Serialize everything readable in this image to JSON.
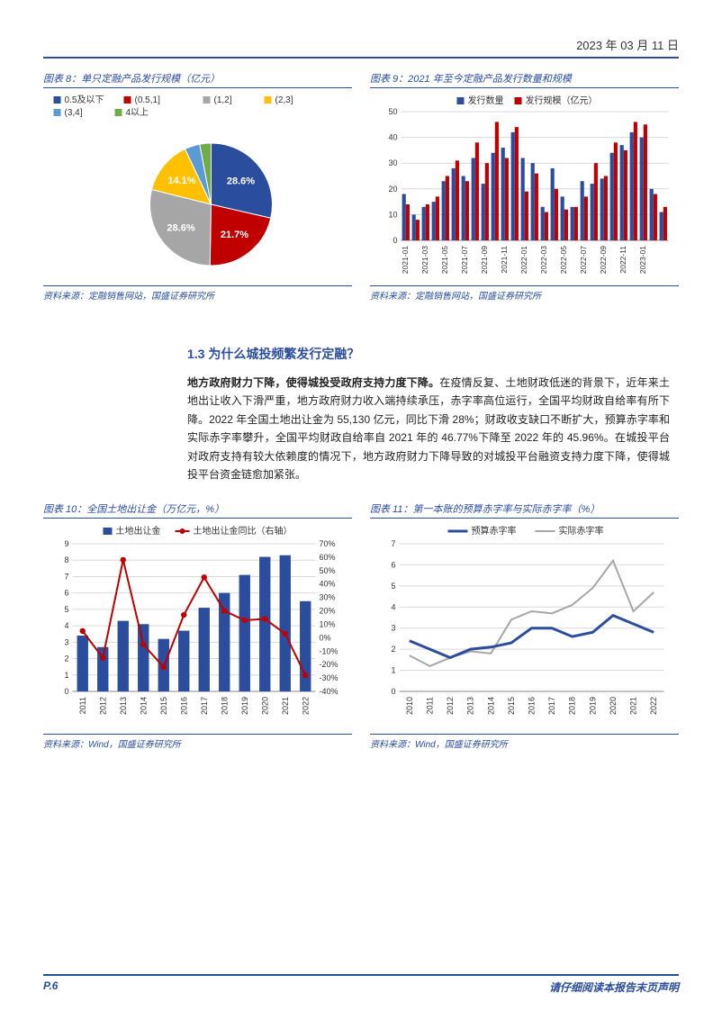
{
  "header": {
    "date": "2023 年 03 月 11 日"
  },
  "footer": {
    "page": "P.6",
    "disclaimer": "请仔细阅读本报告末页声明"
  },
  "section": {
    "heading": "1.3 为什么城投频繁发行定融？",
    "paragraph": "地方政府财力下降，使得城投受政府支持力度下降。在疫情反复、土地财政低迷的背景下，近年来土地出让收入下滑严重，地方政府财力收入端持续承压，赤字率高位运行，全国平均财政自给率有所下降。2022 年全国土地出让金为 55,130 亿元，同比下滑 28%；财政收支缺口不断扩大，预算赤字率和实际赤字率攀升，全国平均财政自给率自 2021 年的 46.77%下降至 2022 年的 45.96%。在城投平台对政府支持有较大依赖度的情况下，地方政府财力下降导致的对城投平台融资支持力度下降，使得城投平台资金链愈加紧张。"
  },
  "chart8": {
    "type": "pie",
    "title": "图表 8：单只定融产品发行规模（亿元）",
    "source": "资料来源：定融销售网站，国盛证券研究所",
    "background_color": "#ffffff",
    "label_fontsize": 10,
    "legend": [
      {
        "name": "0.5及以下",
        "color": "#2a4d9e"
      },
      {
        "name": "(0.5,1]",
        "color": "#c00000"
      },
      {
        "name": "(1,2]",
        "color": "#a6a6a6"
      },
      {
        "name": "(2,3]",
        "color": "#ffc000"
      },
      {
        "name": "(3,4]",
        "color": "#5b9bd5"
      },
      {
        "name": "4以上",
        "color": "#70ad47"
      }
    ],
    "slices": [
      {
        "label": "28.6%",
        "value": 28.6,
        "color": "#2a4d9e"
      },
      {
        "label": "21.7%",
        "value": 21.7,
        "color": "#c00000"
      },
      {
        "label": "28.6%",
        "value": 28.6,
        "color": "#a6a6a6"
      },
      {
        "label": "14.1%",
        "value": 14.1,
        "color": "#ffc000"
      },
      {
        "label": "",
        "value": 4.0,
        "color": "#5b9bd5"
      },
      {
        "label": "",
        "value": 3.0,
        "color": "#70ad47"
      }
    ]
  },
  "chart9": {
    "type": "grouped-bar",
    "title": "图表 9：2021 年至今定融产品发行数量和规模",
    "source": "资料来源：定融销售网站，国盛证券研究所",
    "background_color": "#ffffff",
    "grid_color": "#d9d9d9",
    "ylim": [
      0,
      50
    ],
    "ytick_step": 10,
    "label_fontsize": 9,
    "legend": [
      {
        "name": "发行数量",
        "color": "#2a4d9e"
      },
      {
        "name": "发行规模（亿元）",
        "color": "#c00000"
      }
    ],
    "categories": [
      "2021-01",
      "2021-03",
      "2021-05",
      "2021-07",
      "2021-09",
      "2021-11",
      "2022-01",
      "2022-03",
      "2022-05",
      "2022-07",
      "2022-09",
      "2022-11",
      "2023-01"
    ],
    "series_count": [
      18,
      10,
      13,
      15,
      23,
      28,
      25,
      32,
      22,
      34,
      36,
      42,
      32,
      30,
      13,
      28,
      17,
      13,
      23,
      22,
      24,
      34,
      37,
      42,
      40,
      20,
      11
    ],
    "series_scale": [
      14,
      8,
      14,
      17,
      25,
      31,
      23,
      38,
      30,
      46,
      32,
      44,
      19,
      26,
      11,
      20,
      12,
      13,
      17,
      30,
      25,
      38,
      35,
      46,
      45,
      18,
      13
    ]
  },
  "chart10": {
    "type": "bar-line",
    "title": "图表 10：全国土地出让金（万亿元，%）",
    "source": "资料来源：Wind，国盛证券研究所",
    "background_color": "#ffffff",
    "grid_color": "#d9d9d9",
    "label_fontsize": 10,
    "y1_lim": [
      0,
      9
    ],
    "y1_tick_step": 1,
    "y2_lim": [
      -40,
      70
    ],
    "y2_tick_step": 10,
    "legend": [
      {
        "name": "土地出让金",
        "color": "#2a4d9e",
        "type": "bar"
      },
      {
        "name": "土地出让金同比（右轴）",
        "color": "#c00000",
        "type": "line"
      }
    ],
    "categories": [
      "2011",
      "2012",
      "2013",
      "2014",
      "2015",
      "2016",
      "2017",
      "2018",
      "2019",
      "2020",
      "2021",
      "2022"
    ],
    "bars": [
      3.4,
      2.7,
      4.3,
      4.1,
      3.2,
      3.7,
      5.1,
      6.0,
      7.1,
      8.2,
      8.3,
      5.5
    ],
    "line": [
      5,
      -15,
      58,
      -5,
      -22,
      17,
      45,
      20,
      13,
      14,
      3,
      -28
    ],
    "marker": "circle",
    "line_color": "#c00000",
    "line_width": 2
  },
  "chart11": {
    "type": "line",
    "title": "图表 11：第一本账的预算赤字率与实际赤字率（%）",
    "source": "资料来源：Wind，国盛证券研究所",
    "background_color": "#ffffff",
    "grid_color": "#d9d9d9",
    "label_fontsize": 10,
    "ylim": [
      0,
      7
    ],
    "ytick_step": 1,
    "legend": [
      {
        "name": "预算赤字率",
        "color": "#2a4d9e",
        "width": 3
      },
      {
        "name": "实际赤字率",
        "color": "#a6a6a6",
        "width": 2
      }
    ],
    "categories": [
      "2010",
      "2011",
      "2012",
      "2013",
      "2014",
      "2015",
      "2016",
      "2017",
      "2018",
      "2019",
      "2020",
      "2021",
      "2022"
    ],
    "budget": [
      2.4,
      2.0,
      1.6,
      2.0,
      2.1,
      2.3,
      3.0,
      3.0,
      2.6,
      2.8,
      3.6,
      3.2,
      2.8
    ],
    "actual": [
      1.7,
      1.2,
      1.6,
      1.9,
      1.8,
      3.4,
      3.8,
      3.7,
      4.1,
      4.9,
      6.2,
      3.8,
      4.7
    ]
  }
}
